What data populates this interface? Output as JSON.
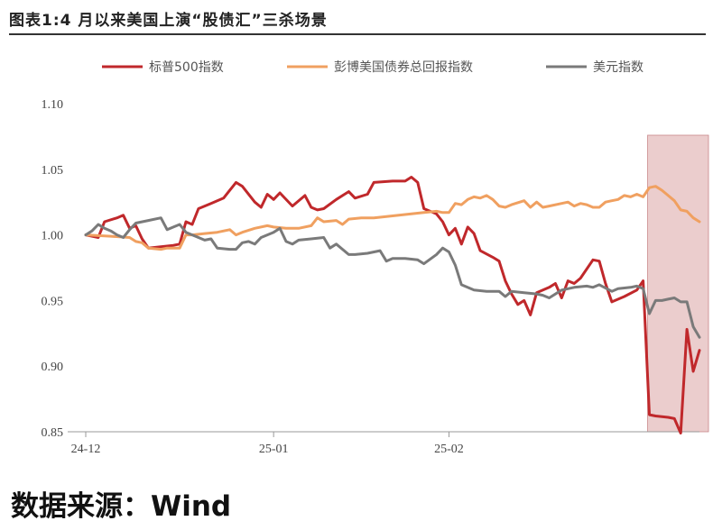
{
  "figure_title": "图表1:4 月以来美国上演“股债汇”三杀场景",
  "source": "数据来源：Wind",
  "chart_data": {
    "type": "line",
    "title": "",
    "xlabel": "",
    "ylabel": "",
    "ylim": [
      0.85,
      1.1
    ],
    "yticks": [
      "1.10",
      "1.05",
      "1.00",
      "0.95",
      "0.90",
      "0.85"
    ],
    "ytick_values": [
      1.1,
      1.05,
      1.0,
      0.95,
      0.9,
      0.85
    ],
    "xticks": [
      "24-12",
      "25-01",
      "25-02"
    ],
    "xtick_positions": [
      0,
      30,
      58
    ],
    "x_range": [
      0,
      98
    ],
    "legend_position": "top",
    "grid": false,
    "highlight_region": {
      "x": [
        89,
        98
      ],
      "color": "#e8c4c4"
    },
    "series": [
      {
        "name": "标普500指数",
        "color": "#c0282b",
        "points": [
          [
            0,
            1.0
          ],
          [
            2,
            0.998
          ],
          [
            3,
            1.01
          ],
          [
            5,
            1.013
          ],
          [
            6,
            1.015
          ],
          [
            7,
            1.005
          ],
          [
            8,
            1.007
          ],
          [
            9,
            0.997
          ],
          [
            10,
            0.99
          ],
          [
            12,
            0.991
          ],
          [
            14,
            0.992
          ],
          [
            15,
            0.993
          ],
          [
            16,
            1.01
          ],
          [
            17,
            1.008
          ],
          [
            18,
            1.02
          ],
          [
            20,
            1.024
          ],
          [
            22,
            1.028
          ],
          [
            24,
            1.04
          ],
          [
            25,
            1.037
          ],
          [
            27,
            1.025
          ],
          [
            28,
            1.021
          ],
          [
            29,
            1.031
          ],
          [
            30,
            1.027
          ],
          [
            31,
            1.032
          ],
          [
            33,
            1.022
          ],
          [
            35,
            1.03
          ],
          [
            36,
            1.021
          ],
          [
            37,
            1.019
          ],
          [
            38,
            1.02
          ],
          [
            40,
            1.027
          ],
          [
            42,
            1.033
          ],
          [
            43,
            1.028
          ],
          [
            45,
            1.031
          ],
          [
            46,
            1.04
          ],
          [
            49,
            1.041
          ],
          [
            51,
            1.041
          ],
          [
            52,
            1.044
          ],
          [
            53,
            1.04
          ],
          [
            54,
            1.02
          ],
          [
            56,
            1.016
          ],
          [
            57,
            1.01
          ],
          [
            58,
            1.0
          ],
          [
            59,
            1.005
          ],
          [
            60,
            0.993
          ],
          [
            61,
            1.006
          ],
          [
            62,
            1.001
          ],
          [
            63,
            0.988
          ],
          [
            65,
            0.983
          ],
          [
            66,
            0.98
          ],
          [
            67,
            0.965
          ],
          [
            68,
            0.955
          ],
          [
            69,
            0.947
          ],
          [
            70,
            0.95
          ],
          [
            71,
            0.939
          ],
          [
            72,
            0.956
          ],
          [
            74,
            0.96
          ],
          [
            75,
            0.963
          ],
          [
            76,
            0.952
          ],
          [
            77,
            0.965
          ],
          [
            78,
            0.963
          ],
          [
            79,
            0.967
          ],
          [
            81,
            0.981
          ],
          [
            82,
            0.98
          ],
          [
            83,
            0.963
          ],
          [
            84,
            0.949
          ],
          [
            86,
            0.953
          ],
          [
            88,
            0.958
          ],
          [
            89,
            0.965
          ],
          [
            90,
            0.863
          ],
          [
            91,
            0.862
          ],
          [
            93,
            0.861
          ],
          [
            94,
            0.86
          ],
          [
            95,
            0.849
          ],
          [
            96,
            0.928
          ],
          [
            97,
            0.896
          ],
          [
            98,
            0.912
          ]
        ]
      },
      {
        "name": "彭博美国债券总回报指数",
        "color": "#f0a060",
        "points": [
          [
            0,
            1.0
          ],
          [
            4,
            0.999
          ],
          [
            7,
            0.998
          ],
          [
            8,
            0.995
          ],
          [
            9,
            0.994
          ],
          [
            10,
            0.99
          ],
          [
            12,
            0.989
          ],
          [
            13,
            0.99
          ],
          [
            15,
            0.99
          ],
          [
            16,
            1.0
          ],
          [
            17,
            1.0
          ],
          [
            19,
            1.001
          ],
          [
            21,
            1.002
          ],
          [
            23,
            1.004
          ],
          [
            24,
            1.0
          ],
          [
            25,
            1.002
          ],
          [
            27,
            1.005
          ],
          [
            29,
            1.007
          ],
          [
            30,
            1.006
          ],
          [
            32,
            1.005
          ],
          [
            34,
            1.005
          ],
          [
            36,
            1.007
          ],
          [
            37,
            1.013
          ],
          [
            38,
            1.01
          ],
          [
            40,
            1.011
          ],
          [
            41,
            1.008
          ],
          [
            42,
            1.012
          ],
          [
            44,
            1.013
          ],
          [
            46,
            1.013
          ],
          [
            48,
            1.014
          ],
          [
            50,
            1.015
          ],
          [
            52,
            1.016
          ],
          [
            54,
            1.017
          ],
          [
            56,
            1.018
          ],
          [
            57,
            1.017
          ],
          [
            58,
            1.017
          ],
          [
            59,
            1.024
          ],
          [
            60,
            1.023
          ],
          [
            61,
            1.027
          ],
          [
            62,
            1.029
          ],
          [
            63,
            1.028
          ],
          [
            64,
            1.03
          ],
          [
            65,
            1.027
          ],
          [
            66,
            1.022
          ],
          [
            67,
            1.021
          ],
          [
            68,
            1.023
          ],
          [
            70,
            1.026
          ],
          [
            71,
            1.021
          ],
          [
            72,
            1.025
          ],
          [
            73,
            1.021
          ],
          [
            74,
            1.022
          ],
          [
            76,
            1.024
          ],
          [
            77,
            1.025
          ],
          [
            78,
            1.022
          ],
          [
            79,
            1.024
          ],
          [
            80,
            1.023
          ],
          [
            81,
            1.021
          ],
          [
            82,
            1.021
          ],
          [
            83,
            1.025
          ],
          [
            84,
            1.026
          ],
          [
            85,
            1.027
          ],
          [
            86,
            1.03
          ],
          [
            87,
            1.029
          ],
          [
            88,
            1.031
          ],
          [
            89,
            1.029
          ],
          [
            90,
            1.036
          ],
          [
            91,
            1.037
          ],
          [
            92,
            1.034
          ],
          [
            93,
            1.03
          ],
          [
            94,
            1.026
          ],
          [
            95,
            1.019
          ],
          [
            96,
            1.018
          ],
          [
            97,
            1.013
          ],
          [
            98,
            1.01
          ]
        ]
      },
      {
        "name": "美元指数",
        "color": "#7a7a7a",
        "points": [
          [
            0,
            1.0
          ],
          [
            1,
            1.003
          ],
          [
            2,
            1.008
          ],
          [
            3,
            1.005
          ],
          [
            4,
            1.003
          ],
          [
            5,
            1.0
          ],
          [
            6,
            0.998
          ],
          [
            7,
            1.004
          ],
          [
            8,
            1.009
          ],
          [
            10,
            1.011
          ],
          [
            12,
            1.013
          ],
          [
            13,
            1.004
          ],
          [
            14,
            1.006
          ],
          [
            15,
            1.008
          ],
          [
            16,
            1.002
          ],
          [
            18,
            0.998
          ],
          [
            19,
            0.996
          ],
          [
            20,
            0.997
          ],
          [
            21,
            0.99
          ],
          [
            23,
            0.989
          ],
          [
            24,
            0.989
          ],
          [
            25,
            0.994
          ],
          [
            26,
            0.995
          ],
          [
            27,
            0.993
          ],
          [
            28,
            0.998
          ],
          [
            30,
            1.002
          ],
          [
            31,
            1.005
          ],
          [
            32,
            0.995
          ],
          [
            33,
            0.993
          ],
          [
            34,
            0.996
          ],
          [
            36,
            0.997
          ],
          [
            38,
            0.998
          ],
          [
            39,
            0.99
          ],
          [
            40,
            0.993
          ],
          [
            42,
            0.985
          ],
          [
            43,
            0.985
          ],
          [
            45,
            0.986
          ],
          [
            47,
            0.988
          ],
          [
            48,
            0.98
          ],
          [
            49,
            0.982
          ],
          [
            51,
            0.982
          ],
          [
            53,
            0.981
          ],
          [
            54,
            0.978
          ],
          [
            56,
            0.985
          ],
          [
            57,
            0.99
          ],
          [
            58,
            0.987
          ],
          [
            59,
            0.977
          ],
          [
            60,
            0.962
          ],
          [
            62,
            0.958
          ],
          [
            64,
            0.957
          ],
          [
            66,
            0.957
          ],
          [
            67,
            0.953
          ],
          [
            68,
            0.957
          ],
          [
            70,
            0.956
          ],
          [
            72,
            0.955
          ],
          [
            73,
            0.954
          ],
          [
            74,
            0.952
          ],
          [
            76,
            0.958
          ],
          [
            78,
            0.96
          ],
          [
            80,
            0.961
          ],
          [
            81,
            0.96
          ],
          [
            82,
            0.962
          ],
          [
            84,
            0.957
          ],
          [
            85,
            0.959
          ],
          [
            87,
            0.96
          ],
          [
            88,
            0.961
          ],
          [
            89,
            0.959
          ],
          [
            90,
            0.94
          ],
          [
            91,
            0.95
          ],
          [
            92,
            0.95
          ],
          [
            93,
            0.951
          ],
          [
            94,
            0.952
          ],
          [
            95,
            0.949
          ],
          [
            96,
            0.949
          ],
          [
            97,
            0.93
          ],
          [
            98,
            0.922
          ]
        ]
      }
    ]
  }
}
